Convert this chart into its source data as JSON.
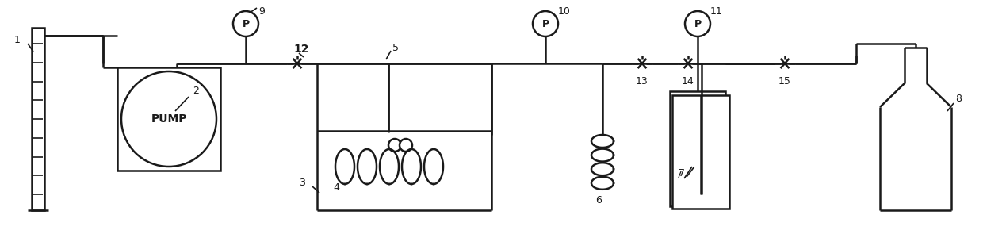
{
  "bg_color": "#ffffff",
  "line_color": "#1a1a1a",
  "lw": 1.8,
  "lw_thin": 1.2,
  "fs": 9,
  "fs_bold": 10,
  "pump_label": "PUMP",
  "labels": {
    "1": "1",
    "2": "2",
    "3": "3",
    "4": "4",
    "5": "5",
    "6": "6",
    "7": "7",
    "8": "8",
    "9": "9",
    "10": "10",
    "11": "11",
    "12": "12",
    "13": "13",
    "14": "14",
    "15": "15"
  }
}
